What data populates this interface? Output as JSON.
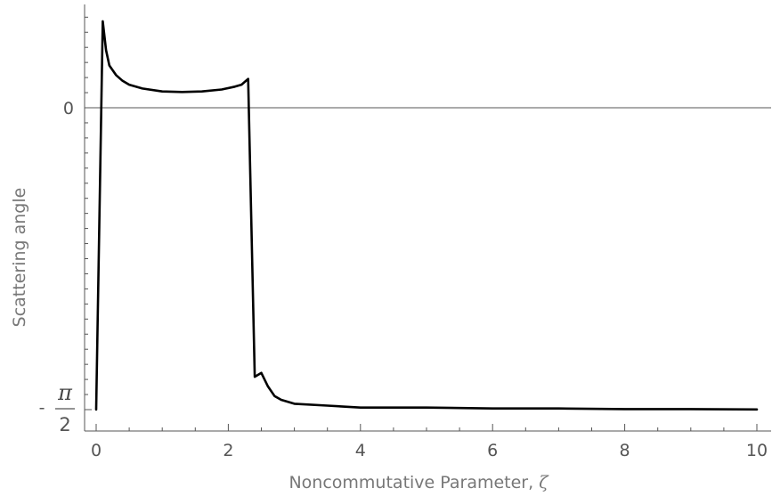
{
  "chart_data": {
    "type": "line",
    "title": "",
    "xlabel": "Noncommutative Parameter,",
    "xlabel_symbol": "ζ",
    "ylabel": "Scattering angle",
    "xlim": [
      -0.15,
      10.15
    ],
    "ylim": [
      -1.68,
      0.55
    ],
    "x_ticks": [
      0,
      2,
      4,
      6,
      8,
      10
    ],
    "x_tick_labels": [
      "0",
      "2",
      "4",
      "6",
      "8",
      "10"
    ],
    "y_ticks": [
      {
        "value": 0,
        "label": "0"
      },
      {
        "value": -1.5708,
        "label_minus": "-",
        "label_numerator": "π",
        "label_denominator": "2"
      }
    ],
    "reference_line_y": 0,
    "series": [
      {
        "color": "#000000",
        "x": [
          0.0,
          0.1,
          0.15,
          0.2,
          0.3,
          0.4,
          0.5,
          0.7,
          1.0,
          1.3,
          1.6,
          1.9,
          2.1,
          2.2,
          2.3,
          2.4,
          2.5,
          2.6,
          2.7,
          2.8,
          3.0,
          3.5,
          4.0,
          5.0,
          6.0,
          7.0,
          8.0,
          9.0,
          10.0
        ],
        "y": [
          -1.57,
          0.45,
          0.3,
          0.22,
          0.17,
          0.14,
          0.12,
          0.1,
          0.085,
          0.082,
          0.085,
          0.095,
          0.11,
          0.12,
          0.15,
          -1.4,
          -1.38,
          -1.45,
          -1.5,
          -1.52,
          -1.54,
          -1.55,
          -1.56,
          -1.56,
          -1.565,
          -1.565,
          -1.568,
          -1.568,
          -1.57
        ]
      }
    ],
    "grid": false,
    "legend": "none"
  }
}
